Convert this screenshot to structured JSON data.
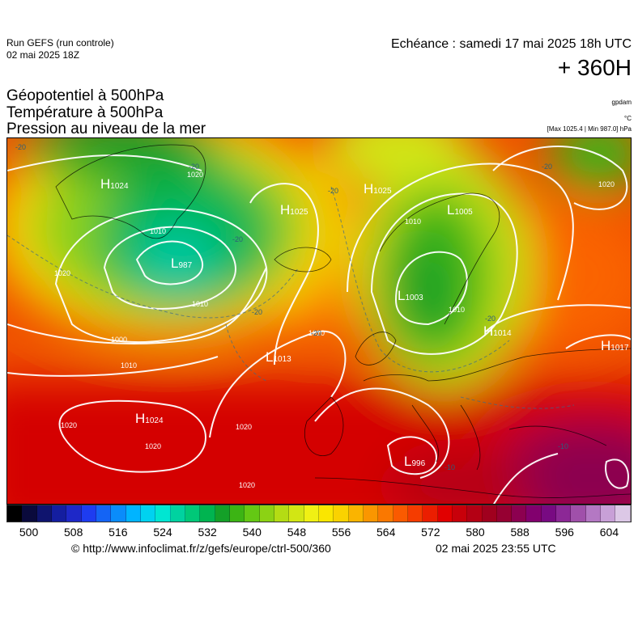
{
  "header": {
    "run_title": "Run GEFS (run controle)",
    "run_date": "02 mai 2025 18Z",
    "echeance": "Echéance : samedi 17 mai 2025 18h UTC",
    "lead_time": "+ 360H"
  },
  "variables": {
    "line1": "Géopotentiel à 500hPa",
    "line2": "Température à 500hPa",
    "line3": "Pression au niveau de la mer"
  },
  "units": {
    "geopotential": "gpdam",
    "temperature": "°C",
    "pressure": "[Max 1025.4 | Min 987.0] hPa"
  },
  "map": {
    "pressure_centers": [
      {
        "type": "H",
        "value": "1024",
        "region": "southern-greenland"
      },
      {
        "type": "L",
        "value": "987",
        "region": "labrador-sea"
      },
      {
        "type": "H",
        "value": "1025",
        "region": "east-of-greenland"
      },
      {
        "type": "H",
        "value": "1025",
        "region": "barents-sea"
      },
      {
        "type": "L",
        "value": "1005",
        "region": "scandinavia-north"
      },
      {
        "type": "L",
        "value": "1003",
        "region": "southern-scandinavia"
      },
      {
        "type": "H",
        "value": "1014",
        "region": "belarus"
      },
      {
        "type": "H",
        "value": "1017",
        "region": "russia-east"
      },
      {
        "type": "L",
        "value": "1013",
        "region": "mid-atlantic"
      },
      {
        "type": "H",
        "value": "1024",
        "region": "azores"
      },
      {
        "type": "L",
        "value": "996",
        "region": "central-mediterranean"
      }
    ],
    "isobar_labels": [
      "1020",
      "1010",
      "1010",
      "1000",
      "1010",
      "1020",
      "1020",
      "1020",
      "1020",
      "1010",
      "1010",
      "1020",
      "1010",
      "1020"
    ],
    "temperature_labels": [
      "-20",
      "-20",
      "-20",
      "-20",
      "-20",
      "-20",
      "-20",
      "-20",
      "-10",
      "-10"
    ]
  },
  "colorbar": {
    "colors": [
      "#000000",
      "#0a0a3c",
      "#0f146e",
      "#141ea0",
      "#1e28c8",
      "#1e3cf0",
      "#1464f5",
      "#0a8cfa",
      "#00b4ff",
      "#00d2f0",
      "#00e6d2",
      "#00d2a0",
      "#00c878",
      "#00b450",
      "#14a028",
      "#3cb414",
      "#64c814",
      "#8cd214",
      "#b4dc14",
      "#d2e614",
      "#f0f014",
      "#fae600",
      "#fad200",
      "#fab400",
      "#fa9600",
      "#fa7800",
      "#fa5a00",
      "#f53c00",
      "#eb1e00",
      "#e10000",
      "#c8000a",
      "#b40014",
      "#a0001e",
      "#960032",
      "#8c0050",
      "#82006e",
      "#780a82",
      "#8c2896",
      "#a050aa",
      "#b478c3",
      "#c8a0d7",
      "#dcc8e6"
    ],
    "tick_labels": [
      "500",
      "508",
      "516",
      "524",
      "532",
      "540",
      "548",
      "556",
      "564",
      "572",
      "580",
      "588",
      "596",
      "604"
    ]
  },
  "footer": {
    "source": "© http://www.infoclimat.fr/z/gefs/europe/ctrl-500/360",
    "issued": "02 mai 2025 23:55 UTC"
  }
}
